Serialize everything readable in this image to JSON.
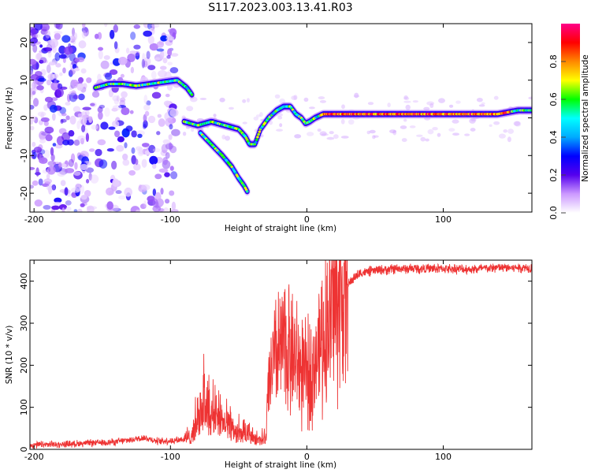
{
  "title": "S117.2023.003.13.41.R03",
  "chart_data": [
    {
      "type": "heatmap",
      "title": "S117.2023.003.13.41.R03",
      "xlabel": "Height of straight line (km)",
      "ylabel": "Frequency (Hz)",
      "xlim": [
        -203,
        165
      ],
      "ylim": [
        -25,
        25
      ],
      "xticks": [
        -200,
        -100,
        0,
        100
      ],
      "yticks": [
        -20,
        -10,
        0,
        10,
        20
      ],
      "colorbar": {
        "label": "Normalized spectral amplitude",
        "range": [
          0,
          1
        ],
        "ticks": [
          "0.0",
          "0.2",
          "0.4",
          "0.6",
          "0.8"
        ],
        "colormap": [
          "#ffffff",
          "#cc99ff",
          "#5500ee",
          "#0000ff",
          "#00aaff",
          "#00ffff",
          "#00ff00",
          "#ffff00",
          "#ff8800",
          "#ff0000",
          "#ff0088"
        ]
      },
      "ridges": [
        {
          "x": [
            -155,
            -145,
            -135,
            -125,
            -115,
            -105,
            -95,
            -88,
            -84
          ],
          "freq": [
            8,
            9,
            9,
            8.5,
            9,
            9.5,
            10,
            8,
            6
          ]
        },
        {
          "x": [
            -90,
            -80,
            -70,
            -60,
            -50,
            -45,
            -42,
            -38,
            -34,
            -28,
            -22,
            -17,
            -12,
            -8,
            -4,
            -1,
            2,
            6,
            12,
            20,
            40,
            60,
            80,
            100,
            120,
            140,
            155,
            165
          ],
          "freq": [
            -1,
            -2,
            -1,
            -2,
            -3,
            -5,
            -7,
            -7,
            -3,
            0,
            2,
            3,
            3,
            1,
            0,
            -1.5,
            -1,
            0,
            1,
            1,
            1,
            1,
            1,
            1,
            1,
            1,
            2,
            2
          ]
        },
        {
          "x": [
            -78,
            -70,
            -62,
            -55,
            -50,
            -46,
            -43
          ],
          "freq": [
            -4,
            -7,
            -10,
            -13,
            -16,
            -18,
            -20
          ]
        }
      ],
      "noise_region": {
        "x": [
          -203,
          -95
        ],
        "freq": [
          -25,
          25
        ]
      }
    },
    {
      "type": "line",
      "xlabel": "Height of straight line (km)",
      "ylabel": "SNR (10 * v/v)",
      "xlim": [
        -203,
        165
      ],
      "ylim": [
        0,
        450
      ],
      "xticks": [
        -200,
        -100,
        0,
        100
      ],
      "yticks": [
        0,
        100,
        200,
        300,
        400
      ],
      "color": "#ee3333",
      "series": [
        {
          "x": [
            -203,
            -180,
            -160,
            -140,
            -130,
            -120,
            -110,
            -100,
            -90,
            -85,
            -80,
            -75,
            -70,
            -65,
            -60,
            -55,
            -50,
            -45,
            -40,
            -35,
            -30,
            -28,
            -25,
            -20,
            -15,
            -10,
            -5,
            0,
            5,
            10,
            15,
            20,
            25,
            30,
            35,
            40,
            50,
            60,
            80,
            100,
            120,
            140,
            165
          ],
          "y": [
            10,
            12,
            15,
            18,
            22,
            28,
            20,
            20,
            25,
            40,
            80,
            140,
            90,
            100,
            70,
            60,
            45,
            40,
            35,
            30,
            30,
            150,
            200,
            230,
            250,
            220,
            190,
            170,
            200,
            250,
            300,
            340,
            370,
            390,
            410,
            420,
            425,
            428,
            430,
            430,
            428,
            432,
            432
          ]
        }
      ]
    }
  ]
}
